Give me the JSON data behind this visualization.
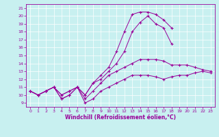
{
  "xlabel": "Windchill (Refroidissement éolien,°C)",
  "bg_color": "#c8f0f0",
  "line_color": "#990099",
  "xlim": [
    -0.5,
    23.5
  ],
  "ylim": [
    8.5,
    21.5
  ],
  "xticks": [
    0,
    1,
    2,
    3,
    4,
    5,
    6,
    7,
    8,
    9,
    10,
    11,
    12,
    13,
    14,
    15,
    16,
    17,
    18,
    19,
    20,
    21,
    22,
    23
  ],
  "yticks": [
    9,
    10,
    11,
    12,
    13,
    14,
    15,
    16,
    17,
    18,
    19,
    20,
    21
  ],
  "line1_x": [
    0,
    1,
    2,
    3,
    4,
    5,
    6,
    7,
    8,
    9,
    10,
    11,
    12,
    13,
    14,
    15,
    16,
    17,
    18,
    19,
    20,
    21,
    22,
    23
  ],
  "line1_y": [
    10.5,
    10.0,
    10.5,
    11.0,
    9.5,
    10.0,
    11.0,
    9.0,
    9.5,
    10.5,
    11.0,
    11.5,
    12.0,
    12.5,
    12.5,
    12.5,
    12.3,
    12.0,
    12.3,
    12.5,
    12.5,
    12.8,
    13.0,
    12.8
  ],
  "line2_x": [
    0,
    1,
    2,
    3,
    4,
    5,
    6,
    7,
    8,
    9,
    10,
    11,
    12,
    13,
    14,
    15,
    16,
    17,
    18,
    19,
    20,
    21,
    22,
    23
  ],
  "line2_y": [
    10.5,
    10.0,
    10.5,
    11.0,
    9.5,
    10.0,
    11.0,
    9.5,
    10.5,
    11.5,
    12.5,
    13.0,
    13.5,
    14.0,
    14.5,
    14.5,
    14.5,
    14.3,
    13.8,
    13.8,
    13.8,
    13.5,
    13.2,
    13.0
  ],
  "line3_x": [
    0,
    1,
    2,
    3,
    4,
    5,
    6,
    7,
    8,
    9,
    10,
    11,
    12,
    13,
    14,
    15,
    16,
    17,
    18,
    19,
    20,
    21,
    22,
    23
  ],
  "line3_y": [
    10.5,
    10.0,
    10.5,
    11.0,
    10.0,
    10.5,
    11.0,
    10.0,
    11.5,
    12.0,
    13.0,
    14.0,
    15.5,
    18.0,
    19.2,
    20.0,
    19.0,
    18.5,
    16.5,
    null,
    null,
    null,
    null,
    null
  ],
  "line4_x": [
    0,
    1,
    2,
    3,
    4,
    5,
    6,
    7,
    8,
    9,
    10,
    11,
    12,
    13,
    14,
    15,
    16,
    17,
    18,
    19,
    20,
    21,
    22,
    23
  ],
  "line4_y": [
    10.5,
    10.0,
    10.5,
    11.0,
    10.0,
    10.5,
    11.0,
    10.0,
    11.5,
    12.5,
    13.5,
    15.5,
    18.0,
    20.2,
    20.5,
    20.5,
    20.2,
    19.5,
    18.5,
    null,
    null,
    null,
    null,
    null
  ]
}
